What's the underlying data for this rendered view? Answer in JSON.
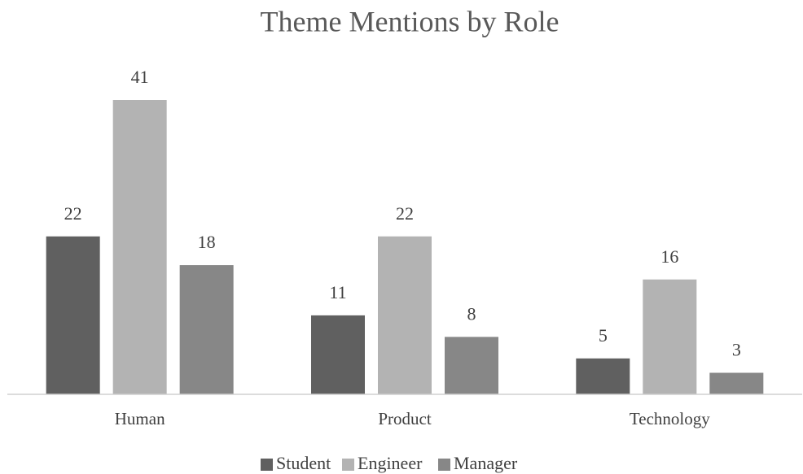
{
  "chart_data": {
    "type": "bar",
    "title": "Theme Mentions by Role",
    "categories": [
      "Human",
      "Product",
      "Technology"
    ],
    "series": [
      {
        "name": "Student",
        "color": "#606060",
        "values": [
          22,
          11,
          5
        ]
      },
      {
        "name": "Engineer",
        "color": "#b3b3b3",
        "values": [
          41,
          22,
          16
        ]
      },
      {
        "name": "Manager",
        "color": "#878787",
        "values": [
          18,
          8,
          3
        ]
      }
    ]
  }
}
